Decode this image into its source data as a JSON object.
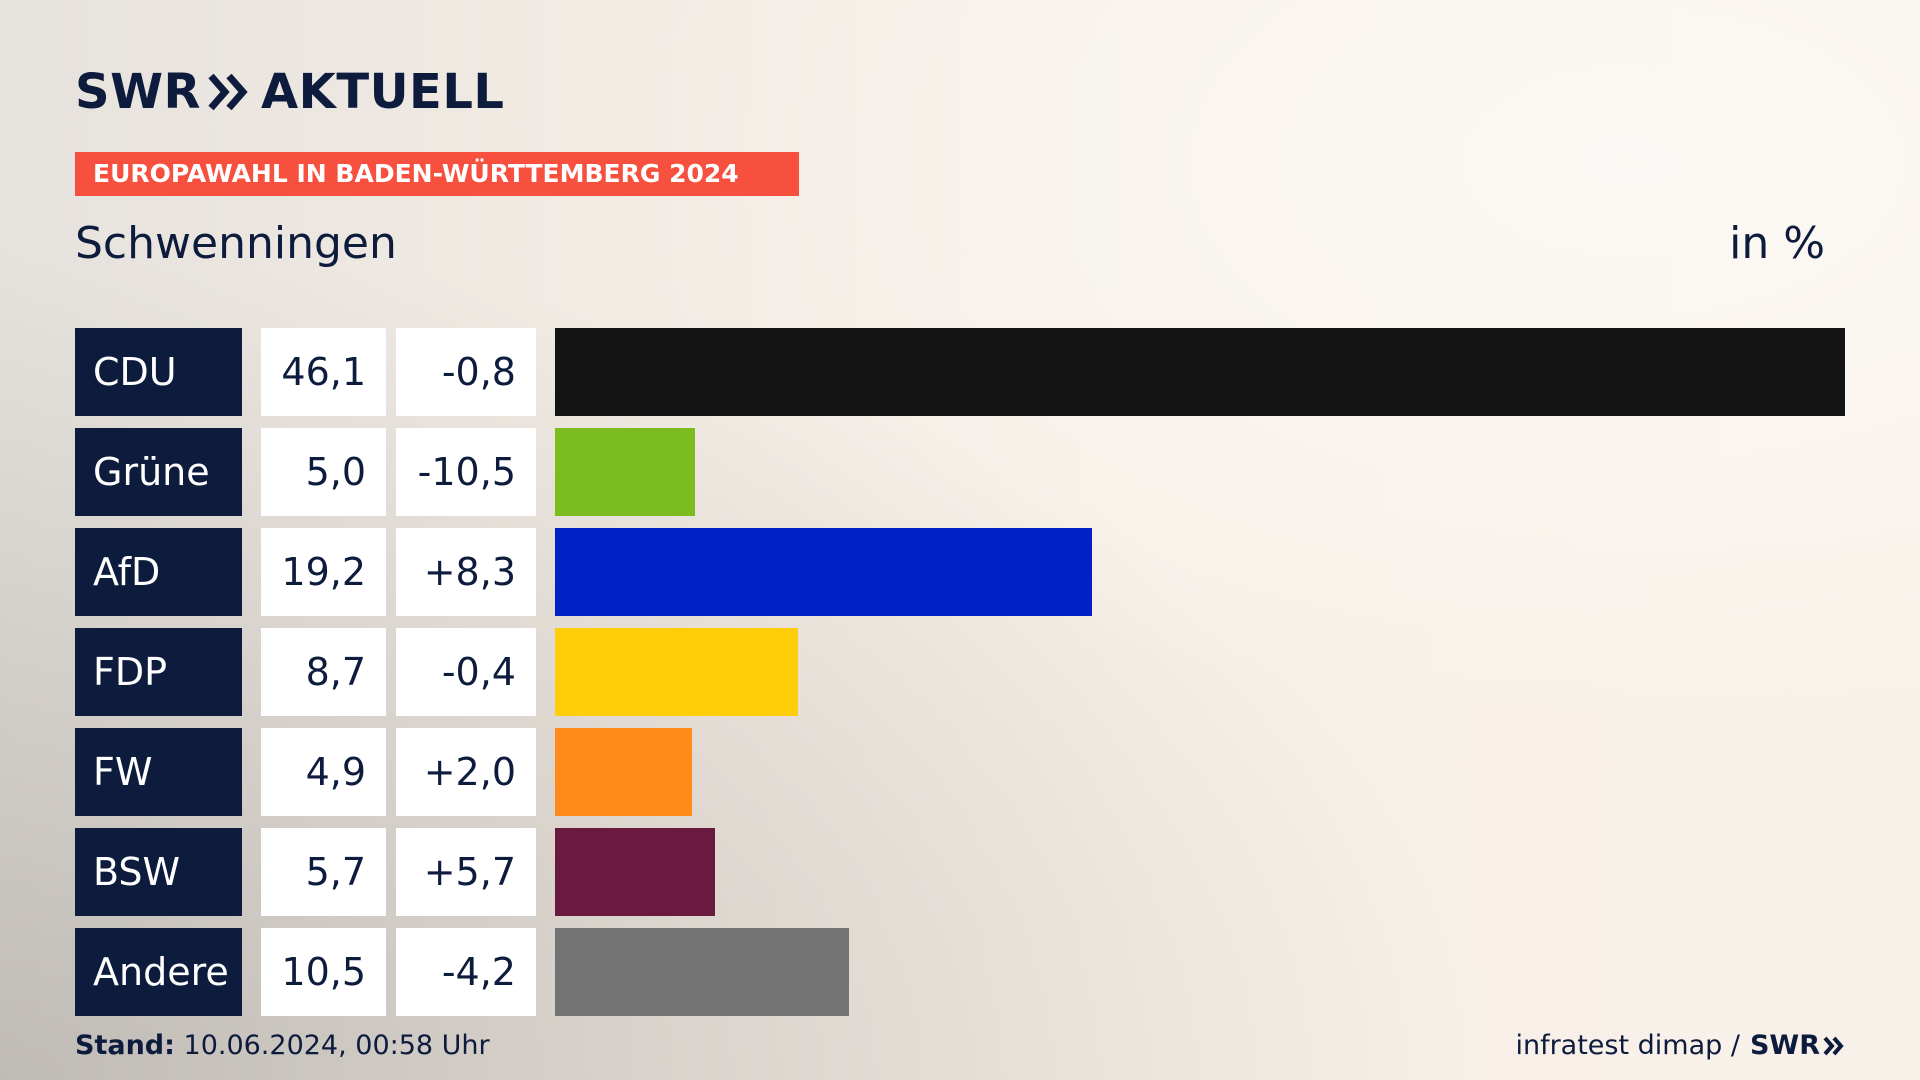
{
  "header": {
    "logo_swr": "SWR",
    "logo_aktuell": "AKTUELL",
    "kicker": "EUROPAWAHL IN BADEN-WÜRTTEMBERG 2024",
    "region": "Schwenningen",
    "unit": "in %"
  },
  "chart_data": {
    "type": "bar",
    "orientation": "horizontal",
    "title": "EUROPAWAHL IN BADEN-WÜRTTEMBERG 2024",
    "subtitle": "Schwenningen",
    "unit": "in %",
    "xlim": [
      0,
      46.1
    ],
    "categories": [
      "CDU",
      "Grüne",
      "AfD",
      "FDP",
      "FW",
      "BSW",
      "Andere"
    ],
    "values": [
      46.1,
      5.0,
      19.2,
      8.7,
      4.9,
      5.7,
      10.5
    ],
    "value_labels": [
      "46,1",
      "5,0",
      "19,2",
      "8,7",
      "4,9",
      "5,7",
      "10,5"
    ],
    "changes": [
      -0.8,
      -10.5,
      8.3,
      -0.4,
      2.0,
      5.7,
      -4.2
    ],
    "change_labels": [
      "-0,8",
      "-10,5",
      "+8,3",
      "-0,4",
      "+2,0",
      "+5,7",
      "-4,2"
    ],
    "colors": [
      "#141414",
      "#7bbd1f",
      "#0020c8",
      "#ffcd0a",
      "#ff8c19",
      "#6a1a3f",
      "#737373"
    ]
  },
  "footer": {
    "stand_label": "Stand:",
    "stand_value": "10.06.2024, 00:58 Uhr",
    "source": "infratest dimap /",
    "source_logo": "SWR"
  }
}
